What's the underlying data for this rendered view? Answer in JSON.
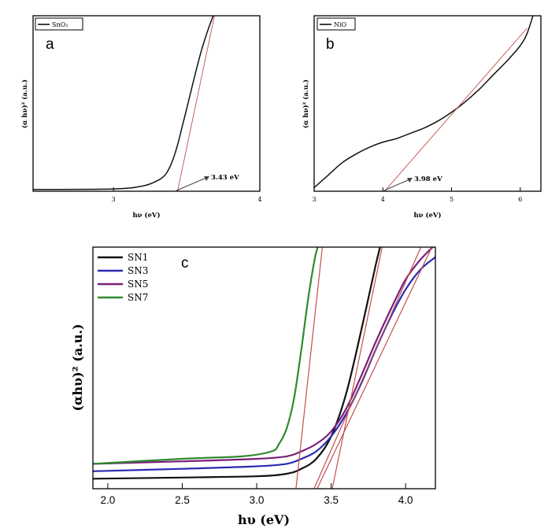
{
  "chart_data": [
    {
      "panel": "a",
      "type": "line",
      "xlabel": "hν (eV)",
      "ylabel": "(α hν)² (a.u.)",
      "xlim": [
        2.45,
        4.0
      ],
      "ylim": [
        0,
        1
      ],
      "xticks": [
        3,
        4
      ],
      "legend": {
        "entries": [
          "SnO₂"
        ],
        "position": "top-left"
      },
      "annotation": {
        "text": "3.43 eV",
        "x": 3.43
      },
      "series": [
        {
          "name": "SnO₂",
          "color": "#111111",
          "x": [
            2.45,
            3.0,
            3.2,
            3.3,
            3.35,
            3.38,
            3.41,
            3.44,
            3.47,
            3.5,
            3.55,
            3.6,
            3.65,
            3.7
          ],
          "y": [
            0.01,
            0.013,
            0.03,
            0.06,
            0.09,
            0.13,
            0.19,
            0.27,
            0.37,
            0.47,
            0.64,
            0.8,
            0.93,
            1.04
          ]
        }
      ],
      "fits": [
        {
          "color": "#c0504d",
          "x": [
            3.43,
            3.7
          ],
          "y": [
            -0.03,
            1.04
          ]
        }
      ]
    },
    {
      "panel": "b",
      "type": "line",
      "xlabel": "hν (eV)",
      "ylabel": "(α hν)² (a.u.)",
      "xlim": [
        3.0,
        6.3
      ],
      "ylim": [
        0,
        1
      ],
      "xticks": [
        3,
        4,
        5,
        6
      ],
      "legend": {
        "entries": [
          "NiO"
        ],
        "position": "top-left"
      },
      "annotation": {
        "text": "3.98 eV",
        "x": 3.98
      },
      "series": [
        {
          "name": "NiO",
          "color": "#111111",
          "x": [
            3.0,
            3.2,
            3.4,
            3.6,
            3.8,
            4.0,
            4.2,
            4.4,
            4.6,
            4.8,
            5.0,
            5.2,
            5.4,
            5.6,
            5.8,
            6.0,
            6.1,
            6.2
          ],
          "y": [
            0.02,
            0.09,
            0.16,
            0.21,
            0.25,
            0.28,
            0.3,
            0.33,
            0.36,
            0.4,
            0.45,
            0.51,
            0.58,
            0.66,
            0.74,
            0.83,
            0.9,
            1.02
          ]
        }
      ],
      "fits": [
        {
          "color": "#c0504d",
          "x": [
            3.98,
            6.1
          ],
          "y": [
            -0.02,
            0.93
          ]
        }
      ]
    },
    {
      "panel": "c",
      "type": "line",
      "xlabel": "hυ (eV)",
      "ylabel": "(αhυ)² (a.u.)",
      "xlim": [
        1.9,
        4.2
      ],
      "ylim": [
        0,
        1
      ],
      "xticks": [
        2.0,
        2.5,
        3.0,
        3.5,
        4.0
      ],
      "xtick_labels": [
        "2.0",
        "2.5",
        "3.0",
        "3.5",
        "4.0"
      ],
      "legend": {
        "entries": [
          "SN1",
          "SN3",
          "SN5",
          "SN7"
        ],
        "position": "top-left"
      },
      "series": [
        {
          "name": "SN1",
          "color": "#111111",
          "x": [
            1.9,
            2.5,
            3.0,
            3.2,
            3.3,
            3.4,
            3.5,
            3.6,
            3.7,
            3.8,
            3.85
          ],
          "y": [
            0.04,
            0.045,
            0.05,
            0.06,
            0.08,
            0.12,
            0.21,
            0.38,
            0.63,
            0.9,
            1.02
          ]
        },
        {
          "name": "SN3",
          "color": "#2b2bb0",
          "x": [
            1.9,
            2.5,
            3.0,
            3.2,
            3.3,
            3.4,
            3.5,
            3.6,
            3.7,
            3.8,
            3.9,
            4.0,
            4.1,
            4.2
          ],
          "y": [
            0.07,
            0.08,
            0.09,
            0.1,
            0.12,
            0.15,
            0.21,
            0.3,
            0.42,
            0.56,
            0.69,
            0.8,
            0.88,
            0.93
          ]
        },
        {
          "name": "SN5",
          "color": "#7a1f7a",
          "x": [
            1.9,
            2.5,
            3.0,
            3.2,
            3.3,
            3.4,
            3.5,
            3.6,
            3.7,
            3.8,
            3.9,
            4.0,
            4.1,
            4.2
          ],
          "y": [
            0.1,
            0.11,
            0.12,
            0.13,
            0.15,
            0.18,
            0.23,
            0.32,
            0.45,
            0.59,
            0.72,
            0.84,
            0.92,
            0.98
          ]
        },
        {
          "name": "SN7",
          "color": "#2e8b2e",
          "x": [
            1.9,
            2.5,
            2.9,
            3.1,
            3.15,
            3.2,
            3.25,
            3.3,
            3.35,
            3.4,
            3.45
          ],
          "y": [
            0.1,
            0.12,
            0.13,
            0.15,
            0.18,
            0.24,
            0.36,
            0.56,
            0.78,
            0.95,
            1.02
          ]
        }
      ],
      "fits": [
        {
          "color": "#c0504d",
          "x": [
            3.26,
            3.45
          ],
          "y": [
            -0.02,
            1.02
          ]
        },
        {
          "color": "#c0504d",
          "x": [
            3.5,
            3.86
          ],
          "y": [
            -0.02,
            1.02
          ]
        },
        {
          "color": "#c0504d",
          "x": [
            3.37,
            4.14
          ],
          "y": [
            -0.02,
            1.02
          ]
        },
        {
          "color": "#c0504d",
          "x": [
            3.39,
            4.2
          ],
          "y": [
            -0.02,
            1.0
          ]
        }
      ]
    }
  ]
}
